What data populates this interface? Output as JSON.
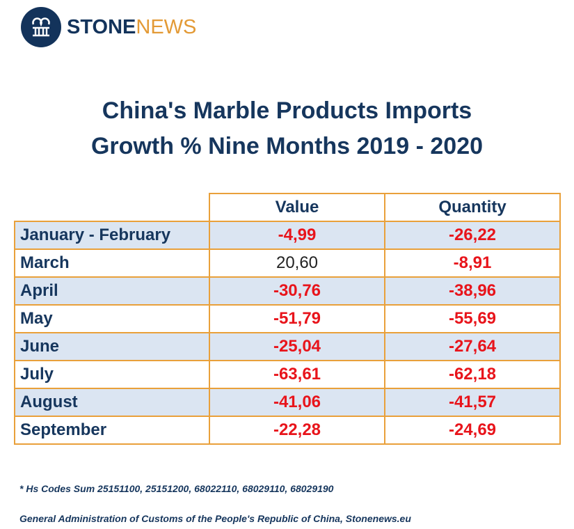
{
  "logo": {
    "part1": "STONE",
    "part2": "NEWS",
    "icon": "stone-column-logo-icon",
    "colors": {
      "primary": "#13335b",
      "accent": "#e39a36"
    }
  },
  "chart_data": {
    "type": "table",
    "title_lines": [
      "China's Marble Products Imports",
      "Growth % Nine Months 2019 - 2020"
    ],
    "columns": [
      "Value",
      "Quantity"
    ],
    "rows": [
      {
        "month": "January - February",
        "value": "-4,99",
        "quantity": "-26,22"
      },
      {
        "month": "March",
        "value": "20,60",
        "quantity": "-8,91"
      },
      {
        "month": "April",
        "value": "-30,76",
        "quantity": "-38,96"
      },
      {
        "month": "May",
        "value": "-51,79",
        "quantity": "-55,69"
      },
      {
        "month": "June",
        "value": "-25,04",
        "quantity": "-27,64"
      },
      {
        "month": "July",
        "value": "-63,61",
        "quantity": "-62,18"
      },
      {
        "month": "August",
        "value": "-41,06",
        "quantity": "-41,57"
      },
      {
        "month": "September",
        "value": "-22,28",
        "quantity": "-24,69"
      }
    ],
    "colors": {
      "negative": "#e8141b",
      "positive": "#222222",
      "border": "#e9a03a",
      "shaded_row": "#dbe5f2",
      "text": "#16365d"
    }
  },
  "footnote": "* Hs Codes Sum 25151100, 25151200, 68022110, 68029110, 68029190",
  "source": "General Administration of Customs of the People's Republic of China, Stonenews.eu"
}
